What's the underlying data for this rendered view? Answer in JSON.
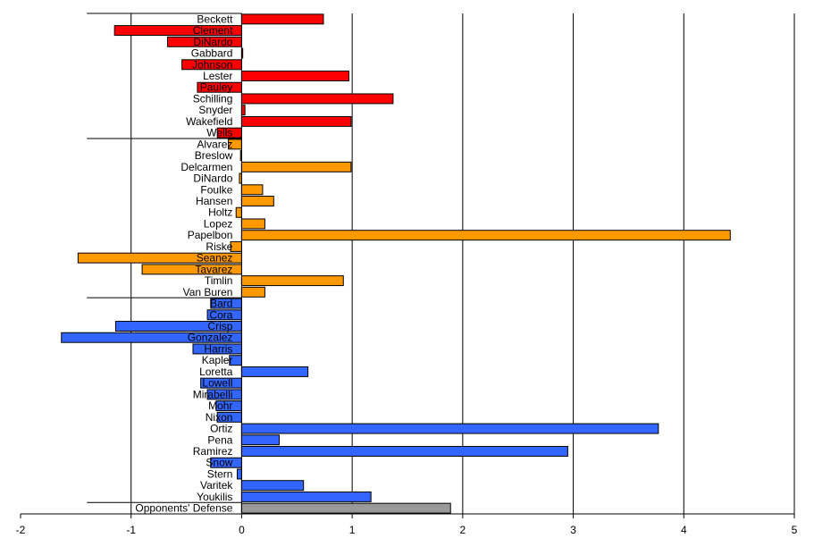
{
  "chart_data": {
    "type": "bar",
    "orientation": "horizontal",
    "xlim": [
      -2,
      5
    ],
    "x_ticks": [
      "-2",
      "-1",
      "0",
      "1",
      "2",
      "3",
      "4",
      "5"
    ],
    "grid": "vertical major gridlines",
    "colors": {
      "red": "#ff0000",
      "orange": "#ff9900",
      "blue": "#3366ff",
      "gray": "#999999"
    },
    "bars": [
      {
        "label": "Beckett",
        "value": 0.74,
        "color": "red"
      },
      {
        "label": "Clement",
        "value": -1.15,
        "color": "red"
      },
      {
        "label": "DiNardo",
        "value": -0.67,
        "color": "red"
      },
      {
        "label": "Gabbard",
        "value": 0.01,
        "color": "red"
      },
      {
        "label": "Johnson",
        "value": -0.54,
        "color": "red"
      },
      {
        "label": "Lester",
        "value": 0.97,
        "color": "red"
      },
      {
        "label": "Pauley",
        "value": -0.4,
        "color": "red"
      },
      {
        "label": "Schilling",
        "value": 1.37,
        "color": "red"
      },
      {
        "label": "Snyder",
        "value": 0.03,
        "color": "red"
      },
      {
        "label": "Wakefield",
        "value": 0.99,
        "color": "red"
      },
      {
        "label": "Wells",
        "value": -0.22,
        "color": "red"
      },
      {
        "label": "Alvarez",
        "value": -0.12,
        "color": "orange"
      },
      {
        "label": "Breslow",
        "value": -0.01,
        "color": "orange"
      },
      {
        "label": "Delcarmen",
        "value": 0.99,
        "color": "orange"
      },
      {
        "label": "DiNardo",
        "value": -0.02,
        "color": "orange"
      },
      {
        "label": "Foulke",
        "value": 0.19,
        "color": "orange"
      },
      {
        "label": "Hansen",
        "value": 0.29,
        "color": "orange"
      },
      {
        "label": "Holtz",
        "value": -0.05,
        "color": "orange"
      },
      {
        "label": "Lopez",
        "value": 0.21,
        "color": "orange"
      },
      {
        "label": "Papelbon",
        "value": 4.42,
        "color": "orange"
      },
      {
        "label": "Riske",
        "value": -0.1,
        "color": "orange"
      },
      {
        "label": "Seanez",
        "value": -1.48,
        "color": "orange"
      },
      {
        "label": "Tavarez",
        "value": -0.9,
        "color": "orange"
      },
      {
        "label": "Timlin",
        "value": 0.92,
        "color": "orange"
      },
      {
        "label": "Van Buren",
        "value": 0.21,
        "color": "orange"
      },
      {
        "label": "Bard",
        "value": -0.28,
        "color": "blue"
      },
      {
        "label": "Cora",
        "value": -0.31,
        "color": "blue"
      },
      {
        "label": "Crisp",
        "value": -1.14,
        "color": "blue"
      },
      {
        "label": "Gonzalez",
        "value": -1.63,
        "color": "blue"
      },
      {
        "label": "Harris",
        "value": -0.44,
        "color": "blue"
      },
      {
        "label": "Kapler",
        "value": -0.11,
        "color": "blue"
      },
      {
        "label": "Loretta",
        "value": 0.6,
        "color": "blue"
      },
      {
        "label": "Lowell",
        "value": -0.37,
        "color": "blue"
      },
      {
        "label": "Mirabelli",
        "value": -0.31,
        "color": "blue"
      },
      {
        "label": "Mohr",
        "value": -0.23,
        "color": "blue"
      },
      {
        "label": "Nixon",
        "value": -0.22,
        "color": "blue"
      },
      {
        "label": "Ortiz",
        "value": 3.77,
        "color": "blue"
      },
      {
        "label": "Pena",
        "value": 0.34,
        "color": "blue"
      },
      {
        "label": "Ramirez",
        "value": 2.95,
        "color": "blue"
      },
      {
        "label": "Snow",
        "value": -0.28,
        "color": "blue"
      },
      {
        "label": "Stern",
        "value": -0.04,
        "color": "blue"
      },
      {
        "label": "Varitek",
        "value": 0.56,
        "color": "blue"
      },
      {
        "label": "Youkilis",
        "value": 1.17,
        "color": "blue"
      },
      {
        "label": "Opponents' Defense",
        "value": 1.89,
        "color": "gray"
      }
    ]
  }
}
